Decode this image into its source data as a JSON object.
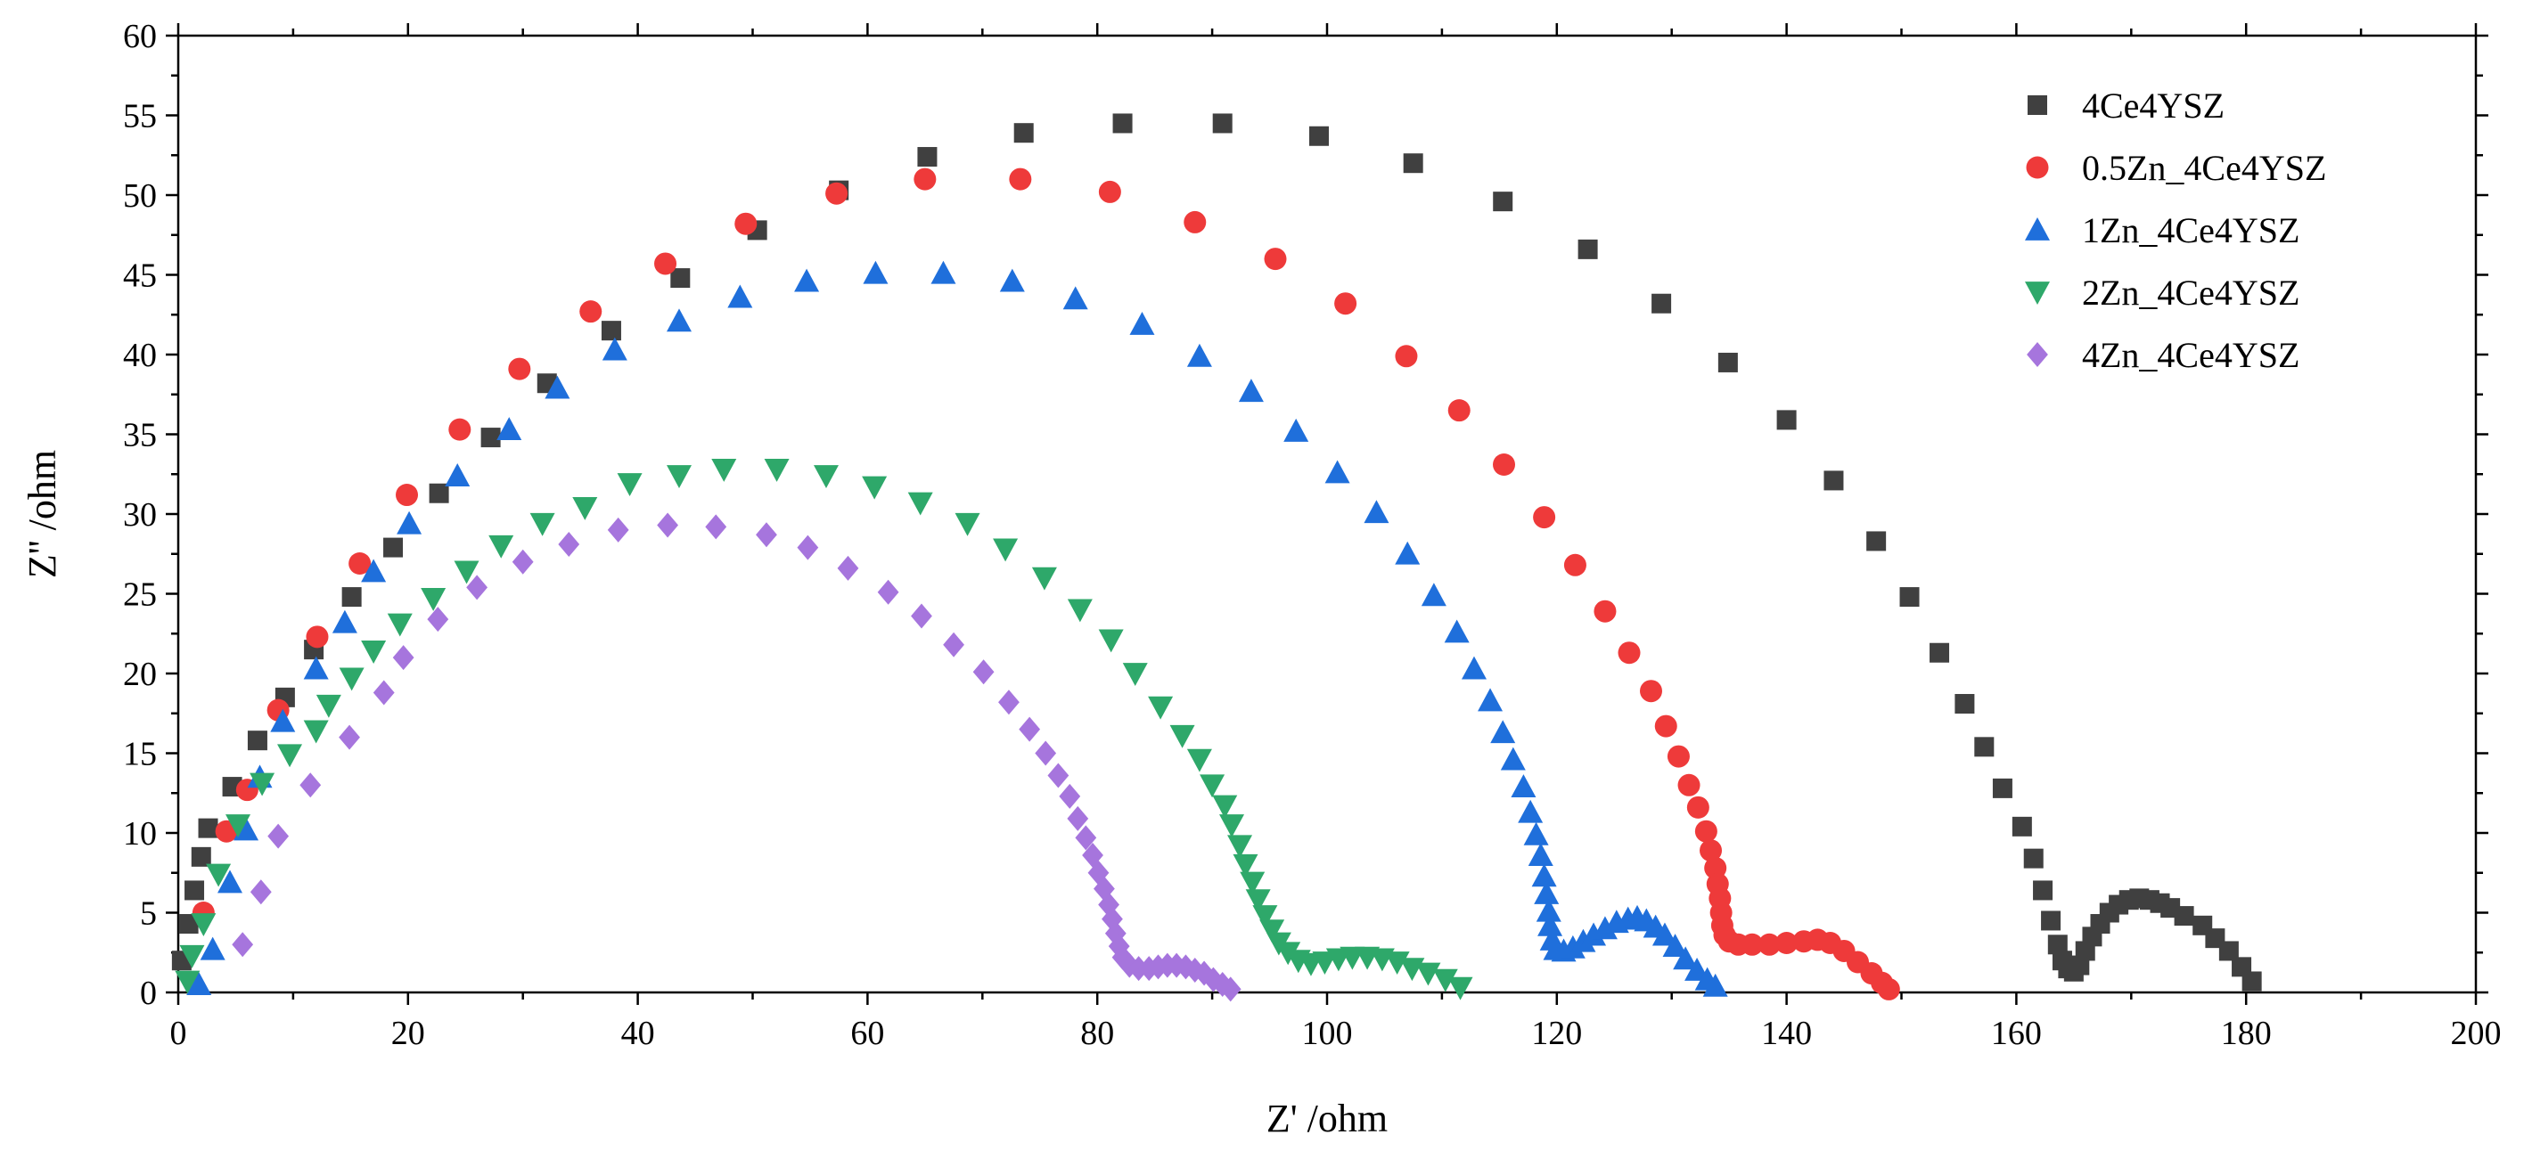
{
  "chart_data": {
    "type": "scatter",
    "title": "",
    "xlabel": "Z' /ohm",
    "ylabel": "Z'' /ohm",
    "xlim": [
      0,
      200
    ],
    "ylim": [
      0,
      60
    ],
    "xticks": [
      0,
      20,
      40,
      60,
      80,
      100,
      120,
      140,
      160,
      180,
      200
    ],
    "yticks": [
      0,
      5,
      10,
      15,
      20,
      25,
      30,
      35,
      40,
      45,
      50,
      55,
      60
    ],
    "legend_position": "top-right",
    "series": [
      {
        "name": "4Ce4YSZ",
        "color": "#404040",
        "marker": "square",
        "points": [
          [
            0.3,
            2.0
          ],
          [
            0.9,
            4.3
          ],
          [
            1.4,
            6.4
          ],
          [
            2.0,
            8.5
          ],
          [
            2.6,
            10.3
          ],
          [
            4.7,
            12.9
          ],
          [
            6.9,
            15.8
          ],
          [
            9.3,
            18.5
          ],
          [
            11.8,
            21.5
          ],
          [
            15.1,
            24.8
          ],
          [
            18.7,
            27.9
          ],
          [
            22.7,
            31.3
          ],
          [
            27.2,
            34.8
          ],
          [
            32.1,
            38.2
          ],
          [
            37.7,
            41.5
          ],
          [
            43.7,
            44.8
          ],
          [
            50.4,
            47.8
          ],
          [
            57.5,
            50.3
          ],
          [
            65.2,
            52.4
          ],
          [
            73.6,
            53.9
          ],
          [
            82.2,
            54.5
          ],
          [
            90.9,
            54.5
          ],
          [
            99.3,
            53.7
          ],
          [
            107.5,
            52.0
          ],
          [
            115.3,
            49.6
          ],
          [
            122.7,
            46.6
          ],
          [
            129.1,
            43.2
          ],
          [
            134.9,
            39.5
          ],
          [
            140.0,
            35.9
          ],
          [
            144.1,
            32.1
          ],
          [
            147.8,
            28.3
          ],
          [
            150.7,
            24.8
          ],
          [
            153.3,
            21.3
          ],
          [
            155.5,
            18.1
          ],
          [
            157.2,
            15.4
          ],
          [
            158.8,
            12.8
          ],
          [
            160.5,
            10.4
          ],
          [
            161.5,
            8.4
          ],
          [
            162.3,
            6.4
          ],
          [
            163.0,
            4.5
          ],
          [
            163.6,
            3.0
          ],
          [
            164.0,
            2.0
          ],
          [
            164.5,
            1.5
          ],
          [
            165.0,
            1.3
          ],
          [
            165.5,
            1.7
          ],
          [
            166.0,
            2.6
          ],
          [
            166.6,
            3.5
          ],
          [
            167.3,
            4.3
          ],
          [
            168.1,
            5.0
          ],
          [
            168.9,
            5.5
          ],
          [
            169.8,
            5.8
          ],
          [
            170.7,
            5.9
          ],
          [
            171.6,
            5.8
          ],
          [
            172.5,
            5.6
          ],
          [
            173.4,
            5.3
          ],
          [
            174.6,
            4.8
          ],
          [
            176.2,
            4.2
          ],
          [
            177.3,
            3.4
          ],
          [
            178.5,
            2.6
          ],
          [
            179.6,
            1.6
          ],
          [
            180.5,
            0.7
          ]
        ]
      },
      {
        "name": "0.5Zn_4Ce4YSZ",
        "color": "#ee3a3a",
        "marker": "circle",
        "points": [
          [
            2.2,
            5.0
          ],
          [
            4.2,
            10.1
          ],
          [
            6.0,
            12.7
          ],
          [
            8.7,
            17.7
          ],
          [
            12.1,
            22.3
          ],
          [
            15.8,
            26.9
          ],
          [
            19.9,
            31.2
          ],
          [
            24.5,
            35.3
          ],
          [
            29.7,
            39.1
          ],
          [
            35.9,
            42.7
          ],
          [
            42.4,
            45.7
          ],
          [
            49.4,
            48.2
          ],
          [
            57.3,
            50.1
          ],
          [
            65.0,
            51.0
          ],
          [
            73.3,
            51.0
          ],
          [
            81.1,
            50.2
          ],
          [
            88.5,
            48.3
          ],
          [
            95.5,
            46.0
          ],
          [
            101.6,
            43.2
          ],
          [
            106.9,
            39.9
          ],
          [
            111.5,
            36.5
          ],
          [
            115.4,
            33.1
          ],
          [
            118.9,
            29.8
          ],
          [
            121.6,
            26.8
          ],
          [
            124.2,
            23.9
          ],
          [
            126.3,
            21.3
          ],
          [
            128.2,
            18.9
          ],
          [
            129.5,
            16.7
          ],
          [
            130.6,
            14.8
          ],
          [
            131.5,
            13.0
          ],
          [
            132.3,
            11.6
          ],
          [
            133.0,
            10.1
          ],
          [
            133.4,
            8.9
          ],
          [
            133.8,
            7.8
          ],
          [
            134.0,
            6.8
          ],
          [
            134.2,
            5.9
          ],
          [
            134.3,
            5.0
          ],
          [
            134.4,
            4.2
          ],
          [
            134.6,
            3.6
          ],
          [
            135.0,
            3.2
          ],
          [
            135.8,
            3.0
          ],
          [
            137.0,
            3.0
          ],
          [
            138.5,
            3.0
          ],
          [
            140.0,
            3.1
          ],
          [
            141.5,
            3.2
          ],
          [
            142.7,
            3.3
          ],
          [
            143.8,
            3.1
          ],
          [
            145.0,
            2.6
          ],
          [
            146.2,
            1.9
          ],
          [
            147.4,
            1.2
          ],
          [
            148.3,
            0.6
          ],
          [
            148.9,
            0.2
          ]
        ]
      },
      {
        "name": "1Zn_4Ce4YSZ",
        "color": "#1f6fdb",
        "marker": "triangle-up",
        "points": [
          [
            1.8,
            0.5
          ],
          [
            3.0,
            2.7
          ],
          [
            4.5,
            6.9
          ],
          [
            5.9,
            10.2
          ],
          [
            7.1,
            13.5
          ],
          [
            9.1,
            17.0
          ],
          [
            12.0,
            20.3
          ],
          [
            14.5,
            23.2
          ],
          [
            17.0,
            26.4
          ],
          [
            20.1,
            29.4
          ],
          [
            24.3,
            32.4
          ],
          [
            28.8,
            35.3
          ],
          [
            33.0,
            37.9
          ],
          [
            38.0,
            40.3
          ],
          [
            43.6,
            42.1
          ],
          [
            48.9,
            43.6
          ],
          [
            54.7,
            44.6
          ],
          [
            60.7,
            45.1
          ],
          [
            66.6,
            45.1
          ],
          [
            72.6,
            44.6
          ],
          [
            78.1,
            43.5
          ],
          [
            83.9,
            41.9
          ],
          [
            88.9,
            39.9
          ],
          [
            93.4,
            37.7
          ],
          [
            97.3,
            35.2
          ],
          [
            100.9,
            32.6
          ],
          [
            104.3,
            30.1
          ],
          [
            107.0,
            27.5
          ],
          [
            109.3,
            24.9
          ],
          [
            111.3,
            22.6
          ],
          [
            112.8,
            20.3
          ],
          [
            114.2,
            18.3
          ],
          [
            115.3,
            16.3
          ],
          [
            116.2,
            14.6
          ],
          [
            117.1,
            12.9
          ],
          [
            117.7,
            11.3
          ],
          [
            118.2,
            9.9
          ],
          [
            118.6,
            8.6
          ],
          [
            118.9,
            7.3
          ],
          [
            119.1,
            6.2
          ],
          [
            119.3,
            5.1
          ],
          [
            119.4,
            4.2
          ],
          [
            119.6,
            3.3
          ],
          [
            119.9,
            2.7
          ],
          [
            120.6,
            2.6
          ],
          [
            121.4,
            2.8
          ],
          [
            122.3,
            3.2
          ],
          [
            123.2,
            3.6
          ],
          [
            124.2,
            4.0
          ],
          [
            125.2,
            4.4
          ],
          [
            126.2,
            4.6
          ],
          [
            127.0,
            4.7
          ],
          [
            127.8,
            4.5
          ],
          [
            128.6,
            4.1
          ],
          [
            129.4,
            3.6
          ],
          [
            130.3,
            2.9
          ],
          [
            131.2,
            2.1
          ],
          [
            132.2,
            1.4
          ],
          [
            133.1,
            0.8
          ],
          [
            133.8,
            0.4
          ]
        ]
      },
      {
        "name": "2Zn_4Ce4YSZ",
        "color": "#2ea86a",
        "marker": "triangle-down",
        "points": [
          [
            0.8,
            0.7
          ],
          [
            1.2,
            2.3
          ],
          [
            2.2,
            4.3
          ],
          [
            3.5,
            7.4
          ],
          [
            5.2,
            10.5
          ],
          [
            7.3,
            13.1
          ],
          [
            9.7,
            14.9
          ],
          [
            12.0,
            16.4
          ],
          [
            13.1,
            18.0
          ],
          [
            15.1,
            19.7
          ],
          [
            17.0,
            21.4
          ],
          [
            19.3,
            23.1
          ],
          [
            22.2,
            24.7
          ],
          [
            25.1,
            26.4
          ],
          [
            28.1,
            28.0
          ],
          [
            31.7,
            29.4
          ],
          [
            35.4,
            30.4
          ],
          [
            39.3,
            31.9
          ],
          [
            43.6,
            32.4
          ],
          [
            47.5,
            32.8
          ],
          [
            52.1,
            32.8
          ],
          [
            56.4,
            32.4
          ],
          [
            60.6,
            31.7
          ],
          [
            64.6,
            30.7
          ],
          [
            68.7,
            29.4
          ],
          [
            72.0,
            27.8
          ],
          [
            75.4,
            26.0
          ],
          [
            78.5,
            24.0
          ],
          [
            81.2,
            22.1
          ],
          [
            83.3,
            20.0
          ],
          [
            85.5,
            17.9
          ],
          [
            87.4,
            16.1
          ],
          [
            88.9,
            14.6
          ],
          [
            90.0,
            13.0
          ],
          [
            91.1,
            11.7
          ],
          [
            91.7,
            10.5
          ],
          [
            92.4,
            9.2
          ],
          [
            92.9,
            8.0
          ],
          [
            93.5,
            6.9
          ],
          [
            94.0,
            5.8
          ],
          [
            94.6,
            4.8
          ],
          [
            95.2,
            3.9
          ],
          [
            95.8,
            3.1
          ],
          [
            96.6,
            2.5
          ],
          [
            97.5,
            2.0
          ],
          [
            98.6,
            1.8
          ],
          [
            99.8,
            1.9
          ],
          [
            101.0,
            2.1
          ],
          [
            102.2,
            2.2
          ],
          [
            103.5,
            2.2
          ],
          [
            104.8,
            2.1
          ],
          [
            106.1,
            1.9
          ],
          [
            107.4,
            1.5
          ],
          [
            108.8,
            1.2
          ],
          [
            110.3,
            0.8
          ],
          [
            111.6,
            0.3
          ]
        ]
      },
      {
        "name": "4Zn_4Ce4YSZ",
        "color": "#a675dd",
        "marker": "diamond",
        "points": [
          [
            5.6,
            3.0
          ],
          [
            7.2,
            6.3
          ],
          [
            8.7,
            9.8
          ],
          [
            11.5,
            13.0
          ],
          [
            14.9,
            16.0
          ],
          [
            17.9,
            18.8
          ],
          [
            19.6,
            21.0
          ],
          [
            22.6,
            23.4
          ],
          [
            26.0,
            25.4
          ],
          [
            30.0,
            27.0
          ],
          [
            34.0,
            28.1
          ],
          [
            38.3,
            29.0
          ],
          [
            42.6,
            29.3
          ],
          [
            46.8,
            29.2
          ],
          [
            51.2,
            28.7
          ],
          [
            54.8,
            27.9
          ],
          [
            58.3,
            26.6
          ],
          [
            61.8,
            25.1
          ],
          [
            64.7,
            23.6
          ],
          [
            67.5,
            21.8
          ],
          [
            70.1,
            20.1
          ],
          [
            72.3,
            18.2
          ],
          [
            74.1,
            16.5
          ],
          [
            75.5,
            15.0
          ],
          [
            76.6,
            13.6
          ],
          [
            77.6,
            12.3
          ],
          [
            78.3,
            10.9
          ],
          [
            79.0,
            9.7
          ],
          [
            79.6,
            8.6
          ],
          [
            80.1,
            7.5
          ],
          [
            80.6,
            6.5
          ],
          [
            81.0,
            5.5
          ],
          [
            81.3,
            4.6
          ],
          [
            81.6,
            3.7
          ],
          [
            81.9,
            2.9
          ],
          [
            82.2,
            2.2
          ],
          [
            82.8,
            1.7
          ],
          [
            83.6,
            1.5
          ],
          [
            84.5,
            1.5
          ],
          [
            85.3,
            1.6
          ],
          [
            86.1,
            1.7
          ],
          [
            86.9,
            1.7
          ],
          [
            87.7,
            1.6
          ],
          [
            88.5,
            1.4
          ],
          [
            89.3,
            1.2
          ],
          [
            90.1,
            0.8
          ],
          [
            90.9,
            0.5
          ],
          [
            91.6,
            0.2
          ]
        ]
      }
    ]
  }
}
